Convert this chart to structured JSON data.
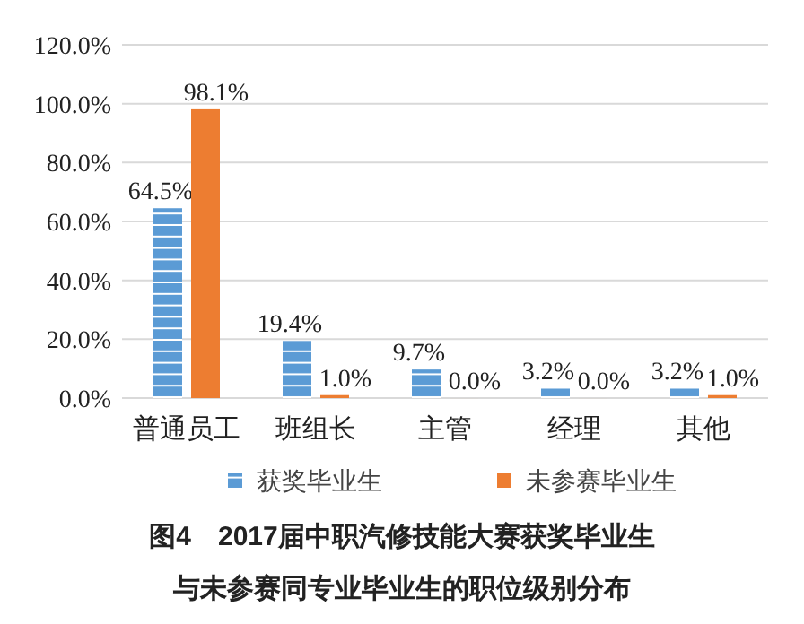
{
  "chart_data": {
    "type": "bar",
    "title": "图4　2017届中职汽修技能大赛获奖毕业生",
    "subtitle": "与未参赛同专业毕业生的职位级别分布",
    "categories": [
      "普通员工",
      "班组长",
      "主管",
      "经理",
      "其他"
    ],
    "series": [
      {
        "name": "获奖毕业生",
        "color": "#5b9bd5",
        "values": [
          64.5,
          19.4,
          9.7,
          3.2,
          3.2
        ],
        "value_labels": [
          "64.5%",
          "19.4%",
          "9.7%",
          "3.2%",
          "3.2%"
        ]
      },
      {
        "name": "未参赛毕业生",
        "color": "#ed7d31",
        "values": [
          98.1,
          1.0,
          0.0,
          0.0,
          1.0
        ],
        "value_labels": [
          "98.1%",
          "1.0%",
          "0.0%",
          "0.0%",
          "1.0%"
        ]
      }
    ],
    "ylim": [
      0,
      120
    ],
    "yticks": [
      {
        "value": 0,
        "label": "0.0%"
      },
      {
        "value": 20,
        "label": "20.0%"
      },
      {
        "value": 40,
        "label": "40.0%"
      },
      {
        "value": 60,
        "label": "60.0%"
      },
      {
        "value": 80,
        "label": "80.0%"
      },
      {
        "value": 100,
        "label": "100.0%"
      },
      {
        "value": 120,
        "label": "120.0%"
      }
    ],
    "grid": "y",
    "legend": "bottom"
  }
}
